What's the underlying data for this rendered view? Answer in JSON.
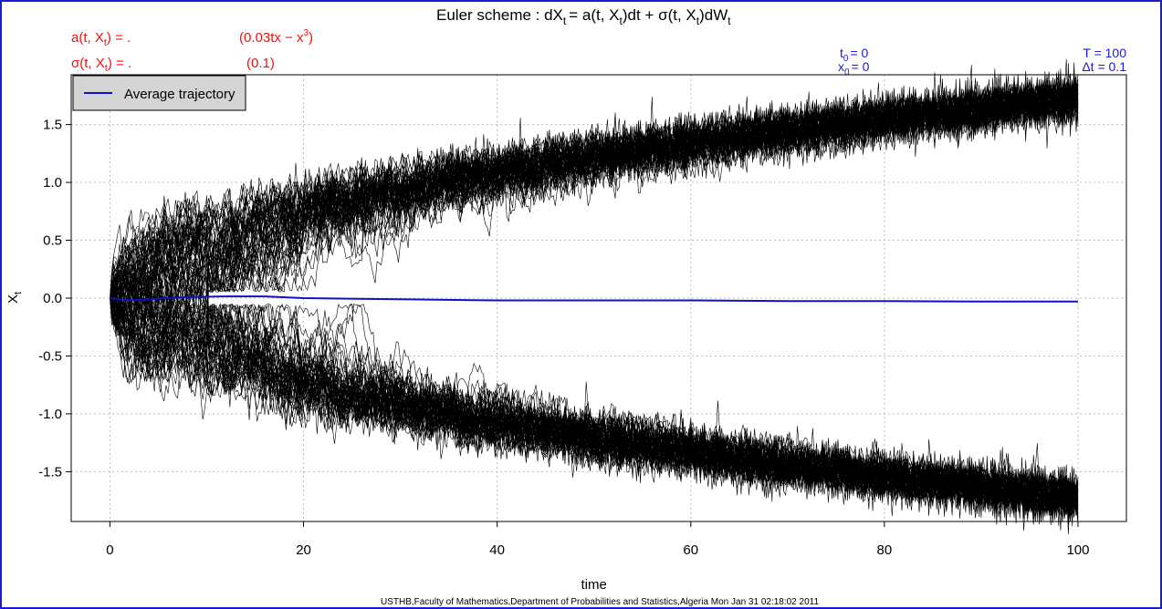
{
  "header": {
    "title_prefix": "Euler scheme : dX",
    "title_rest": "= a(t, X",
    "title_rest2": ")dt + σ(t, X",
    "title_rest3": ")dW",
    "sub_t": "t",
    "drift_label": "a(t, X",
    "drift_label_end": ") = .",
    "drift_expr": "(0.03tx − x",
    "drift_expr_sup": "3",
    "drift_expr_end": ")",
    "diffusion_label": "σ(t, X",
    "diffusion_label_end": ") = .",
    "diffusion_expr": "(0.1)",
    "t0_label": "t",
    "t0_sub": "0",
    "t0_value": "= 0",
    "x0_label": "x",
    "x0_sub": "0",
    "x0_value": "= 0",
    "T_text": "T = 100",
    "dt_text": "Δt = 0.1",
    "footer": "USTHB,Faculty of Mathematics,Department of Probabilities and Statistics,Algeria Mon Jan 31 02:18:02 2011"
  },
  "colors": {
    "frame": "#1a1ad6",
    "param_text": "#ee1111",
    "info_text": "#1a1ad6",
    "trajectories": "#000000",
    "average": "#1010c8",
    "grid": "#bdbdbd",
    "legend_bg": "#d4d4d4"
  },
  "chart_data": {
    "type": "line",
    "title": "Euler scheme : dX_t = a(t, X_t)dt + σ(t, X_t)dW_t",
    "xlabel": "time",
    "ylabel": "X_t",
    "xlim": [
      -4,
      105
    ],
    "ylim": [
      -1.93,
      1.93
    ],
    "x_ticks": [
      0,
      20,
      40,
      60,
      80,
      100
    ],
    "x_tick_labels": [
      "0",
      "20",
      "40",
      "60",
      "80",
      "100"
    ],
    "y_ticks": [
      -1.5,
      -1.0,
      -0.5,
      0.0,
      0.5,
      1.0,
      1.5
    ],
    "y_tick_labels": [
      "-1.5",
      "-1.0",
      "-0.5",
      "0.0",
      "0.5",
      "1.0",
      "1.5"
    ],
    "grid": true,
    "legend": {
      "placement": "top-left",
      "entries": [
        "Average trajectory"
      ]
    },
    "series": [
      {
        "name": "Average trajectory",
        "x": [
          0,
          2,
          5,
          8,
          12,
          16,
          20,
          30,
          40,
          50,
          60,
          70,
          80,
          90,
          100
        ],
        "values": [
          0.0,
          -0.02,
          -0.005,
          0.01,
          0.015,
          0.015,
          0.0,
          -0.01,
          -0.02,
          -0.02,
          -0.02,
          -0.025,
          -0.025,
          -0.03,
          -0.03
        ]
      }
    ],
    "ensemble": {
      "description": "Simulated trajectories of dX = (0.03tX - X^3)dt + 0.1dW, X0 = 0, t in [0,100], dt = 0.1",
      "upper_branch_end": 1.73,
      "lower_branch_end": -1.73,
      "x_end": 100
    }
  }
}
